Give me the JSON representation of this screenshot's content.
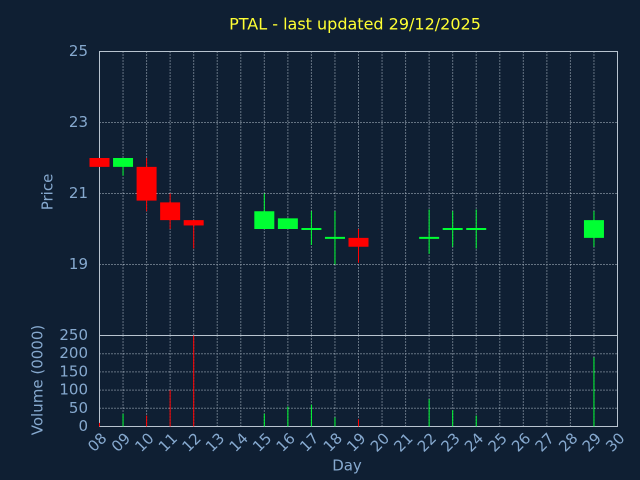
{
  "chart_data": [
    {
      "type": "candlestick",
      "title": "PTAL - last updated 29/12/2025",
      "y_label": "Price",
      "x": [
        8,
        9,
        10,
        11,
        12,
        15,
        16,
        17,
        18,
        19,
        22,
        23,
        24,
        29
      ],
      "open": [
        22.0,
        21.75,
        21.75,
        20.75,
        20.25,
        20.0,
        20.0,
        20.0,
        19.75,
        19.75,
        19.75,
        20.0,
        20.0,
        19.75
      ],
      "high": [
        22.0,
        22.0,
        22.0,
        21.0,
        20.25,
        21.0,
        20.3,
        20.5,
        20.5,
        20.0,
        20.55,
        20.5,
        20.55,
        20.5
      ],
      "low": [
        21.75,
        21.5,
        20.5,
        20.0,
        19.45,
        20.0,
        20.0,
        19.55,
        19.0,
        19.05,
        19.3,
        19.5,
        19.45,
        19.5
      ],
      "close": [
        21.75,
        22.0,
        20.8,
        20.25,
        20.1,
        20.5,
        20.3,
        20.0,
        19.75,
        19.5,
        19.75,
        20.0,
        20.0,
        20.25
      ],
      "up_color": "#00ff33",
      "down_color": "#ff0000",
      "xlim": [
        8,
        30
      ],
      "ylim": [
        17,
        25
      ],
      "yticks": [
        19,
        21,
        23,
        25
      ],
      "grid": true
    },
    {
      "type": "bar",
      "y_label": "Volume (0000)",
      "x_label": "Day",
      "x": [
        8,
        9,
        10,
        11,
        12,
        15,
        16,
        17,
        18,
        19,
        22,
        23,
        24,
        29
      ],
      "values": [
        10,
        35,
        30,
        100,
        250,
        35,
        55,
        60,
        25,
        20,
        75,
        45,
        30,
        190
      ],
      "xlim": [
        8,
        30
      ],
      "xticks": [
        {
          "value": 8,
          "label": "08"
        },
        {
          "value": 9,
          "label": "09"
        },
        10,
        11,
        12,
        13,
        14,
        15,
        16,
        17,
        18,
        19,
        20,
        21,
        22,
        23,
        24,
        25,
        26,
        27,
        28,
        29,
        30
      ],
      "ylim": [
        0,
        250
      ],
      "yticks": [
        0,
        50,
        100,
        150,
        200,
        250
      ],
      "grid": true
    }
  ]
}
